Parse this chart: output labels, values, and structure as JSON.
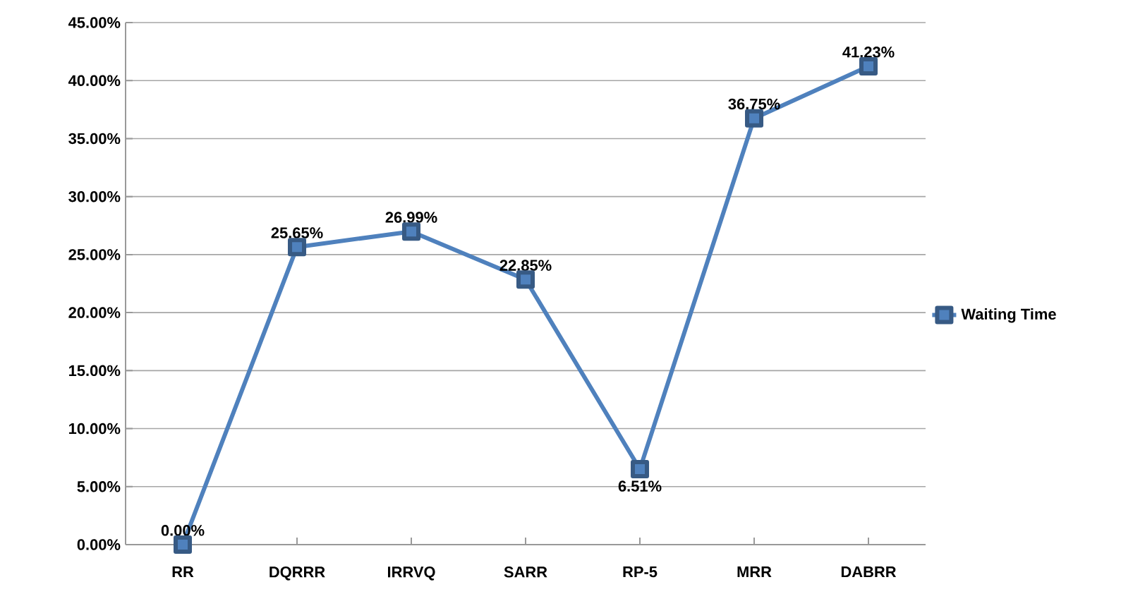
{
  "chart_data": {
    "type": "line",
    "categories": [
      "RR",
      "DQRRR",
      "IRRVQ",
      "SARR",
      "RP-5",
      "MRR",
      "DABRR"
    ],
    "series": [
      {
        "name": "Waiting Time",
        "color": "#4f81bd",
        "values": [
          0,
          25.65,
          26.99,
          22.85,
          6.51,
          36.75,
          41.23
        ],
        "value_labels": [
          "0.00%",
          "25.65%",
          "26.99%",
          "22.85%",
          "6.51%",
          "36.75%",
          "41.23%"
        ]
      }
    ],
    "ylim": [
      0,
      45
    ],
    "yticks": [
      {
        "value": 0,
        "label": "0.00%"
      },
      {
        "value": 5,
        "label": "5.00%"
      },
      {
        "value": 10,
        "label": "10.00%"
      },
      {
        "value": 15,
        "label": "15.00%"
      },
      {
        "value": 20,
        "label": "20.00%"
      },
      {
        "value": 25,
        "label": "25.00%"
      },
      {
        "value": 30,
        "label": "30.00%"
      },
      {
        "value": 35,
        "label": "35.00%"
      },
      {
        "value": 40,
        "label": "40.00%"
      },
      {
        "value": 45,
        "label": "45.00%"
      }
    ],
    "grid": "y",
    "legend": "right",
    "marker": "square",
    "line_style": "solid"
  }
}
